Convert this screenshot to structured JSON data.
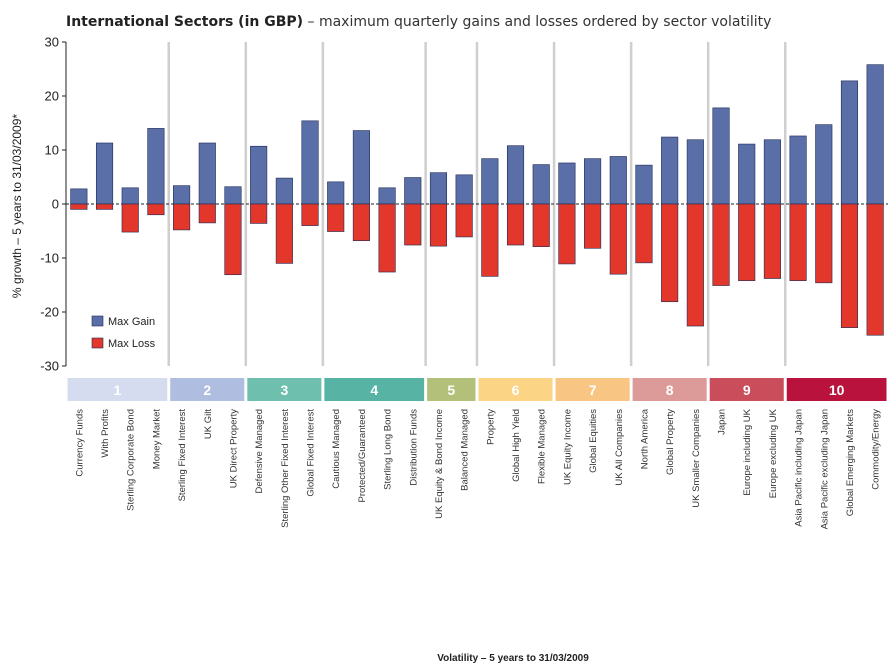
{
  "chart_data": {
    "type": "bar",
    "title_bold": "International Sectors (in GBP)",
    "title_rest": " – maximum quarterly gains and losses ordered by sector volatility",
    "ylabel": "% growth – 5 years to 31/03/2009*",
    "xlabel": "Volatility – 5 years to 31/03/2009",
    "ylim": [
      -30,
      30
    ],
    "yticks": [
      30,
      20,
      10,
      0,
      -10,
      -20,
      -30
    ],
    "legend_position": "bottom-left",
    "categories": [
      "Currency Funds",
      "With Profits",
      "Sterling Corporate Bond",
      "Money Market",
      "Sterling Fixed Interest",
      "UK Gilt",
      "UK Direct Property",
      "Defensive Managed",
      "Sterling Other Fixed Interest",
      "Global Fixed Interest",
      "Cautious Managed",
      "Protected/Guaranteed",
      "Sterling Long Bond",
      "Distribution Funds",
      "UK Equity & Bond Income",
      "Balanced Managed",
      "Property",
      "Global High Yield",
      "Flexible Managed",
      "UK Equity Income",
      "Global Equities",
      "UK All Companies",
      "North America",
      "Global Property",
      "UK Smaller Companies",
      "Japan",
      "Europe including UK",
      "Europe excluding UK",
      "Asia Pacific including Japan",
      "Asia Pacific excluding Japan",
      "Global Emerging Markets",
      "Commodity/Energy"
    ],
    "series": [
      {
        "name": "Max Gain",
        "color": "#5a6fa8",
        "values": [
          2.8,
          11.3,
          3.0,
          14.0,
          3.4,
          11.3,
          3.2,
          10.7,
          4.8,
          15.4,
          4.1,
          13.6,
          3.0,
          4.9,
          5.8,
          5.4,
          8.4,
          10.8,
          7.3,
          7.6,
          8.4,
          8.8,
          7.2,
          12.4,
          11.9,
          17.8,
          11.1,
          11.9,
          12.6,
          14.7,
          22.8,
          25.8
        ]
      },
      {
        "name": "Max Loss",
        "color": "#e2372a",
        "values": [
          -1.0,
          -1.0,
          -5.2,
          -2.0,
          -4.8,
          -3.5,
          -13.1,
          -3.6,
          -11.0,
          -4.0,
          -5.1,
          -6.8,
          -12.6,
          -7.6,
          -7.8,
          -6.1,
          -13.4,
          -7.6,
          -7.9,
          -11.1,
          -8.2,
          -13.0,
          -10.9,
          -18.1,
          -22.6,
          -15.1,
          -14.2,
          -13.8,
          -14.2,
          -14.6,
          -22.9,
          -24.3
        ]
      }
    ],
    "groups": [
      {
        "label": "1",
        "start": 0,
        "end": 3,
        "color": "#d6dcef"
      },
      {
        "label": "2",
        "start": 4,
        "end": 6,
        "color": "#aebde0"
      },
      {
        "label": "3",
        "start": 7,
        "end": 9,
        "color": "#6ebfad"
      },
      {
        "label": "4",
        "start": 10,
        "end": 13,
        "color": "#57b3a4"
      },
      {
        "label": "5",
        "start": 14,
        "end": 15,
        "color": "#b3c07a"
      },
      {
        "label": "6",
        "start": 16,
        "end": 18,
        "color": "#fcd486"
      },
      {
        "label": "7",
        "start": 19,
        "end": 21,
        "color": "#f8c582"
      },
      {
        "label": "8",
        "start": 22,
        "end": 24,
        "color": "#dc9a98"
      },
      {
        "label": "9",
        "start": 25,
        "end": 27,
        "color": "#c94d5a"
      },
      {
        "label": "10",
        "start": 28,
        "end": 31,
        "color": "#b8123d"
      }
    ]
  }
}
